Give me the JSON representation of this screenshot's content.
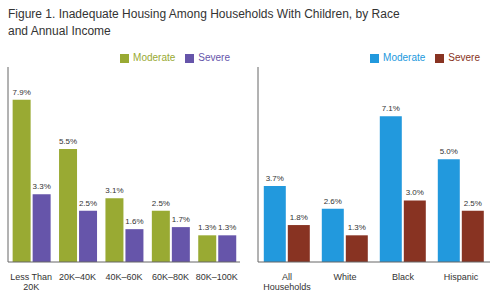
{
  "chart_data": [
    {
      "type": "bar",
      "title": "Figure 1. Inadequate Housing Among Households With Children, by Race\nand Annual Income",
      "categories": [
        "Less Than\n20K",
        "20K–40K",
        "40K–60K",
        "60K–80K",
        "80K–100K"
      ],
      "series": [
        {
          "name": "Moderate",
          "color": "#99aa33",
          "values": [
            7.9,
            5.5,
            3.1,
            2.5,
            1.3
          ],
          "value_labels": [
            "7.9%",
            "5.5%",
            "3.1%",
            "2.5%",
            "1.3%"
          ]
        },
        {
          "name": "Severe",
          "color": "#6655aa",
          "values": [
            3.3,
            2.5,
            1.6,
            1.7,
            1.3
          ],
          "value_labels": [
            "3.3%",
            "2.5%",
            "1.6%",
            "1.7%",
            "1.3%"
          ]
        }
      ],
      "ylim": [
        0,
        9.5
      ],
      "data_labels": true,
      "legend": "upper right",
      "tick_labels": "x"
    },
    {
      "type": "bar",
      "categories": [
        "All\nHouseholds",
        "White",
        "Black",
        "Hispanic"
      ],
      "series": [
        {
          "name": "Moderate",
          "color": "#2299dd",
          "values": [
            3.7,
            2.6,
            7.1,
            5.0
          ],
          "value_labels": [
            "3.7%",
            "2.6%",
            "7.1%",
            "5.0%"
          ]
        },
        {
          "name": "Severe",
          "color": "#883322",
          "values": [
            1.8,
            1.3,
            3.0,
            2.5
          ],
          "value_labels": [
            "1.8%",
            "1.3%",
            "3.0%",
            "2.5%"
          ]
        }
      ],
      "ylim": [
        0,
        9.5
      ],
      "data_labels": true,
      "legend": "upper right",
      "tick_labels": "x"
    }
  ]
}
